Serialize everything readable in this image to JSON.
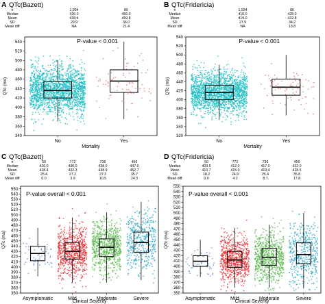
{
  "chart_data": [
    {
      "type": "box+jitter",
      "panel_letter": "A",
      "title": "QTc(Bazett)",
      "stats": {
        "row_labels": [
          "n",
          "Median",
          "Mean",
          "SD",
          "Mean diff"
        ],
        "columns": [
          [
            "1,934",
            "436.0",
            "438.4",
            "29.9",
            "NA"
          ],
          [
            "80",
            "456.0",
            "459.8",
            "36.0",
            "21.4"
          ]
        ]
      },
      "ylabel": "QTc (ms)",
      "xlabel": "Mortality",
      "categories": [
        "No",
        "Yes"
      ],
      "colors": [
        "#1fbfc6",
        "#e8756c"
      ],
      "n_points": [
        1934,
        80
      ],
      "boxes": [
        {
          "q1": 420,
          "median": 436,
          "q3": 455,
          "wlo": 370,
          "whi": 500,
          "pmin": 345,
          "pmax": 535
        },
        {
          "q1": 432,
          "median": 456,
          "q3": 480,
          "wlo": 375,
          "whi": 540,
          "pmin": 375,
          "pmax": 540
        }
      ],
      "ylim": [
        340,
        550
      ],
      "yticks": [
        340,
        360,
        380,
        400,
        420,
        440,
        460,
        480,
        500,
        520,
        540
      ],
      "annotation": "P-value < 0.001"
    },
    {
      "type": "box+jitter",
      "panel_letter": "B",
      "title": "QTc(Fridericia)",
      "stats": {
        "row_labels": [
          "n",
          "Median",
          "Mean",
          "SD",
          "Mean diff"
        ],
        "columns": [
          [
            "1,934",
            "416.0",
            "419.0",
            "27.9",
            "NA"
          ],
          [
            "80",
            "428.0",
            "432.8",
            "34.2",
            "13.8"
          ]
        ]
      },
      "ylabel": "QTc (ms)",
      "xlabel": "Mortality",
      "categories": [
        "No",
        "Yes"
      ],
      "colors": [
        "#1fbfc6",
        "#e8756c"
      ],
      "n_points": [
        1934,
        80
      ],
      "boxes": [
        {
          "q1": 400,
          "median": 416,
          "q3": 432,
          "wlo": 355,
          "whi": 478,
          "pmin": 335,
          "pmax": 520
        },
        {
          "q1": 410,
          "median": 428,
          "q3": 446,
          "wlo": 365,
          "whi": 500,
          "pmin": 365,
          "pmax": 500
        }
      ],
      "ylim": [
        320,
        540
      ],
      "yticks": [
        320,
        340,
        360,
        380,
        400,
        420,
        440,
        460,
        480,
        500,
        520,
        540
      ],
      "annotation": "P-value < 0.001"
    },
    {
      "type": "box+jitter",
      "panel_letter": "C",
      "title": "QTc(Bazett)",
      "stats": {
        "row_labels": [
          "n",
          "Median",
          "Mean",
          "SD",
          "Mean diff"
        ],
        "columns": [
          [
            "50",
            "426.0",
            "428.4",
            "25.4",
            "0.0"
          ],
          [
            "772",
            "430.0",
            "432.3",
            "27.2",
            "3.9"
          ],
          [
            "736",
            "438.0",
            "438.9",
            "27.3",
            "10.5"
          ],
          [
            "456",
            "447.0",
            "452.7",
            "35.7",
            "24.3"
          ]
        ]
      },
      "ylabel": "QTc (ms)",
      "xlabel": "Clinical Severity",
      "categories": [
        "Asymptomatic",
        "Mild",
        "Moderate",
        "Severe"
      ],
      "colors": [
        "#5b8ed6",
        "#e8353a",
        "#59b84d",
        "#2aa6c8"
      ],
      "n_points": [
        50,
        772,
        736,
        456
      ],
      "boxes": [
        {
          "q1": 412,
          "median": 426,
          "q3": 440,
          "wlo": 382,
          "whi": 475,
          "pmin": 382,
          "pmax": 475
        },
        {
          "q1": 415,
          "median": 430,
          "q3": 447,
          "wlo": 370,
          "whi": 495,
          "pmin": 350,
          "pmax": 525
        },
        {
          "q1": 420,
          "median": 438,
          "q3": 454,
          "wlo": 370,
          "whi": 505,
          "pmin": 360,
          "pmax": 525
        },
        {
          "q1": 428,
          "median": 447,
          "q3": 467,
          "wlo": 375,
          "whi": 525,
          "pmin": 365,
          "pmax": 530
        }
      ],
      "ylim": [
        350,
        555
      ],
      "yticks": [
        350,
        360,
        370,
        380,
        390,
        400,
        410,
        420,
        430,
        440,
        450,
        460,
        470,
        480,
        490,
        500,
        510,
        520,
        530,
        540,
        550
      ],
      "annotation": "P-value overall < 0.001"
    },
    {
      "type": "box+jitter",
      "panel_letter": "D",
      "title": "QTc(Fridericia)",
      "stats": {
        "row_labels": [
          "n",
          "Median",
          "Mean",
          "SD",
          "Mean diff"
        ],
        "columns": [
          [
            "50",
            "409.5",
            "410.7",
            "18.2",
            "0.0"
          ],
          [
            "772",
            "412.0",
            "415.0",
            "24.9",
            "4.2"
          ],
          [
            "736",
            "417.0",
            "419.4",
            "25.4",
            "8.7"
          ],
          [
            "456",
            "422.0",
            "428.5",
            "35.8",
            "17.8"
          ]
        ]
      },
      "ylabel": "QTc (ms)",
      "xlabel": "Clinical Severity",
      "categories": [
        "Asymptomatic",
        "Mild",
        "Moderate",
        "Severe"
      ],
      "colors": [
        "#5b8ed6",
        "#e8353a",
        "#59b84d",
        "#2aa6c8"
      ],
      "n_points": [
        50,
        772,
        736,
        456
      ],
      "boxes": [
        {
          "q1": 400,
          "median": 409.5,
          "q3": 420,
          "wlo": 380,
          "whi": 450,
          "pmin": 380,
          "pmax": 450
        },
        {
          "q1": 398,
          "median": 412,
          "q3": 428,
          "wlo": 360,
          "whi": 472,
          "pmin": 350,
          "pmax": 500
        },
        {
          "q1": 402,
          "median": 417,
          "q3": 434,
          "wlo": 360,
          "whi": 478,
          "pmin": 355,
          "pmax": 510
        },
        {
          "q1": 405,
          "median": 422,
          "q3": 444,
          "wlo": 360,
          "whi": 500,
          "pmin": 355,
          "pmax": 545
        }
      ],
      "ylim": [
        350,
        550
      ],
      "yticks": [
        350,
        360,
        370,
        380,
        390,
        400,
        410,
        420,
        430,
        440,
        450,
        460,
        470,
        480,
        490,
        500,
        510,
        520,
        530,
        540,
        550
      ],
      "annotation": "P-value overall < 0.001"
    }
  ]
}
